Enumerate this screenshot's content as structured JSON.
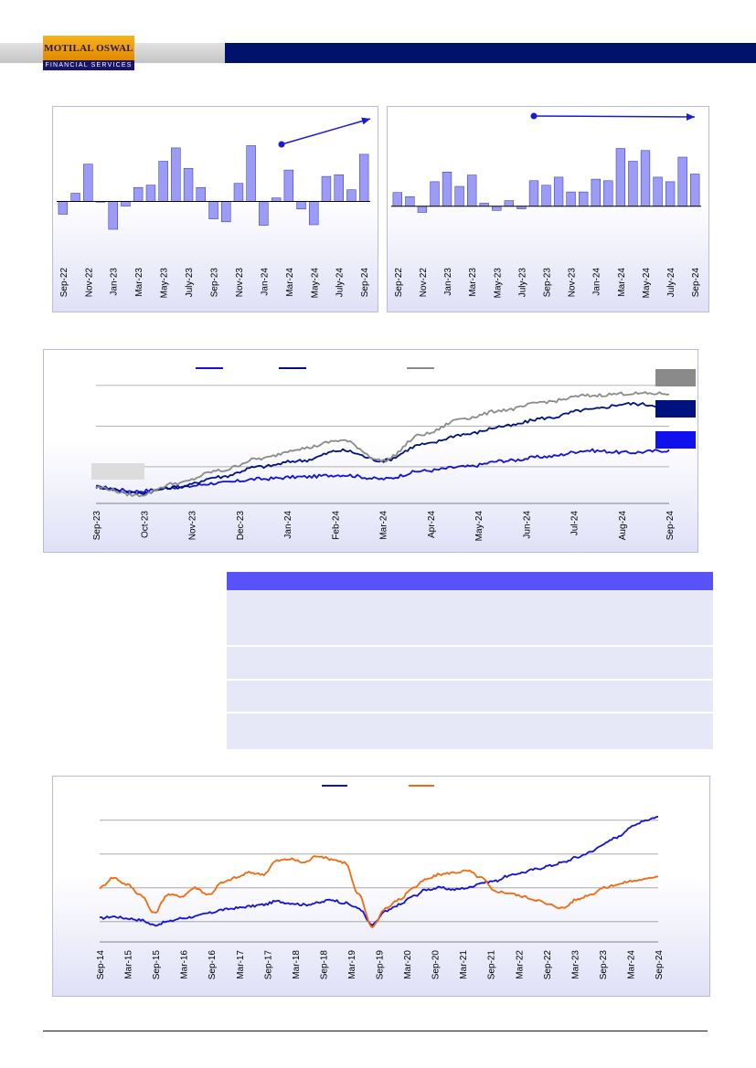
{
  "header": {
    "logo_name": "MOTILAL OSWAL",
    "logo_sub": "FINANCIAL SERVICES"
  },
  "colors": {
    "header_blue": "#00126a",
    "bar_fill": "#9b9cf5",
    "line_gray": "#8a8a8a",
    "line_navy": "#00127e",
    "line_blue": "#1111d8",
    "line_orange": "#f06a0f",
    "table_header": "#5752fa"
  },
  "chart_data": [
    {
      "type": "bar",
      "categories": [
        "Sep-22",
        "Oct-22",
        "Nov-22",
        "Dec-22",
        "Jan-23",
        "Feb-23",
        "Mar-23",
        "Apr-23",
        "May-23",
        "Jun-23",
        "July-23",
        "Aug-23",
        "Sep-23",
        "Oct-23",
        "Nov-23",
        "Dec-23",
        "Jan-24",
        "Feb-24",
        "Mar-24",
        "Apr-24",
        "May-24",
        "Jun-24",
        "July-24",
        "Aug-24",
        "Sep-24"
      ],
      "tick_labels": [
        "Sep-22",
        "Nov-22",
        "Jan-23",
        "Mar-23",
        "May-23",
        "July-23",
        "Sep-23",
        "Nov-23",
        "Jan-24",
        "Mar-24",
        "May-24",
        "July-24",
        "Sep-24"
      ],
      "values": [
        -2.2,
        1.4,
        6.4,
        -0.1,
        -4.8,
        -0.8,
        2.4,
        2.8,
        6.9,
        9.2,
        5.7,
        2.4,
        -3.0,
        -3.5,
        3.1,
        9.6,
        -4.1,
        0.6,
        5.4,
        -1.3,
        -4.0,
        4.3,
        4.6,
        2.0,
        8.1
      ],
      "ylim": [
        -7,
        15
      ],
      "grid": false,
      "annotation": "trend arrow rising to top-right"
    },
    {
      "type": "bar",
      "categories": [
        "Sep-22",
        "Oct-22",
        "Nov-22",
        "Dec-22",
        "Jan-23",
        "Feb-23",
        "Mar-23",
        "Apr-23",
        "May-23",
        "Jun-23",
        "July-23",
        "Aug-23",
        "Sep-23",
        "Oct-23",
        "Nov-23",
        "Dec-23",
        "Jan-24",
        "Feb-24",
        "Mar-24",
        "Apr-24",
        "May-24",
        "Jun-24",
        "July-24",
        "Aug-24",
        "Sep-24"
      ],
      "tick_labels": [
        "Sep-22",
        "Nov-22",
        "Jan-23",
        "Mar-23",
        "May-23",
        "July-23",
        "Sep-23",
        "Nov-23",
        "Jan-24",
        "Mar-24",
        "May-24",
        "July-24",
        "Sep-24"
      ],
      "values": [
        2.7,
        1.9,
        -1.2,
        4.8,
        6.7,
        3.9,
        6.1,
        0.6,
        -0.8,
        1.1,
        -0.5,
        5.0,
        4.1,
        5.7,
        2.8,
        2.8,
        5.3,
        5.0,
        11.3,
        8.8,
        10.9,
        5.7,
        4.8,
        9.6,
        6.3
      ],
      "ylim": [
        -7,
        18
      ],
      "grid": false,
      "annotation": "flat trend arrow pointing right"
    },
    {
      "type": "line",
      "tick_labels": [
        "Sep-23",
        "Oct-23",
        "Nov-23",
        "Dec-23",
        "Jan-24",
        "Feb-24",
        "Mar-24",
        "Apr-24",
        "May-24",
        "Jun-24",
        "Jul-24",
        "Aug-24",
        "Sep-24"
      ],
      "series": [
        {
          "values": [
            100,
            98,
            100,
            102,
            104,
            105,
            106,
            104,
            108,
            110,
            113,
            115,
            118,
            117,
            118
          ]
        },
        {
          "values": [
            100,
            97,
            100,
            105,
            110,
            113,
            118,
            113,
            121,
            126,
            130,
            134,
            138,
            141,
            140
          ]
        },
        {
          "values": [
            100,
            96,
            102,
            108,
            114,
            119,
            123,
            113,
            126,
            134,
            138,
            142,
            145,
            146,
            146
          ]
        }
      ],
      "ylim": [
        92,
        154
      ],
      "grid": true
    },
    {
      "type": "line",
      "tick_labels": [
        "Sep-14",
        "Mar-15",
        "Sep-15",
        "Mar-16",
        "Sep-16",
        "Mar-17",
        "Sep-17",
        "Mar-18",
        "Sep-18",
        "Mar-19",
        "Sep-19",
        "Mar-20",
        "Sep-20",
        "Mar-21",
        "Sep-21",
        "Mar-22",
        "Sep-22",
        "Mar-23",
        "Sep-23",
        "Mar-24",
        "Sep-24"
      ],
      "series": [
        {
          "values": [
            22,
            23,
            22,
            21,
            18,
            20,
            22,
            23,
            25,
            27,
            28,
            29,
            30,
            32,
            31,
            30,
            31,
            33,
            31,
            28,
            18,
            26,
            30,
            35,
            39,
            40,
            39,
            40,
            43,
            44,
            47,
            49,
            51,
            53,
            55,
            58,
            61,
            66,
            70,
            76,
            80,
            82
          ]
        },
        {
          "values": [
            40,
            46,
            42,
            36,
            25,
            36,
            35,
            40,
            36,
            43,
            46,
            49,
            48,
            56,
            57,
            55,
            59,
            57,
            55,
            36,
            17,
            28,
            33,
            40,
            45,
            48,
            49,
            50,
            46,
            38,
            37,
            35,
            33,
            30,
            28,
            33,
            36,
            40,
            42,
            44,
            45,
            47
          ]
        }
      ],
      "ylim": [
        8,
        95
      ],
      "grid": true
    }
  ]
}
